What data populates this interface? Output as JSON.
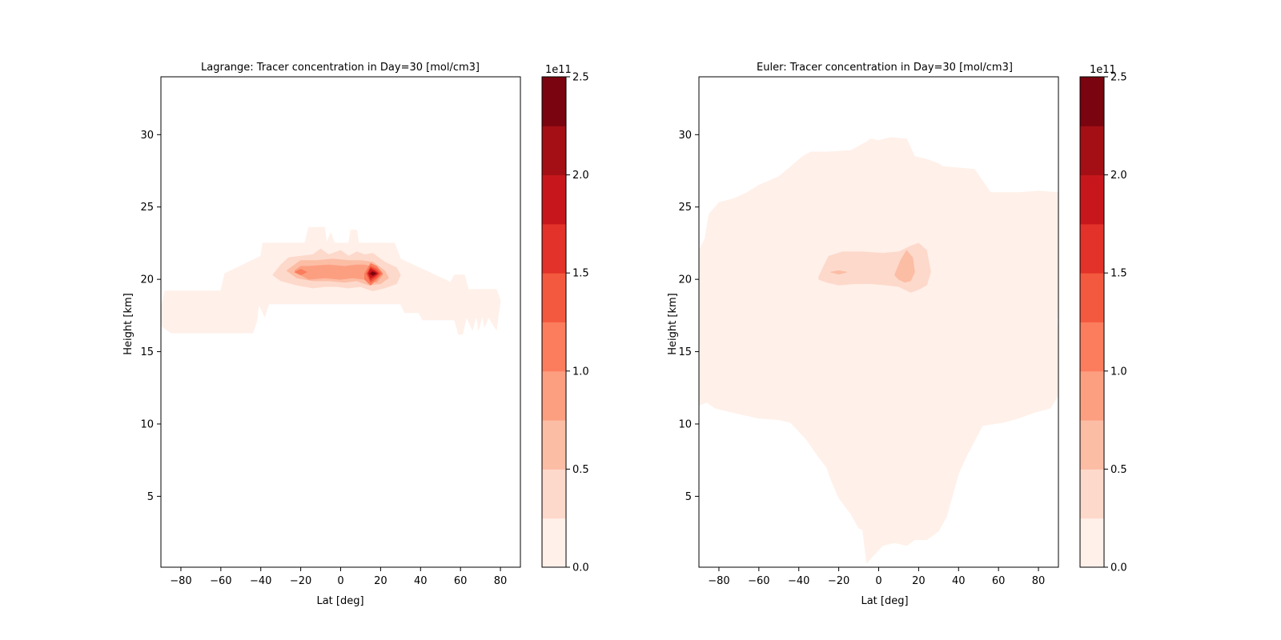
{
  "colors": {
    "levels": [
      "#fff0e9",
      "#fdd9cb",
      "#fcbda5",
      "#fc9f81",
      "#fb7d5d",
      "#f3593f",
      "#e33229",
      "#c8171c",
      "#a30f15",
      "#7a040f"
    ],
    "frame": "#000000",
    "background": "#ffffff"
  },
  "chart_data": [
    {
      "type": "contour",
      "title": "Lagrange: Tracer concentration in Day=30 [mol/cm3]",
      "xlabel": "Lat [deg]",
      "ylabel": "Height [km]",
      "xlim": [
        -90,
        90
      ],
      "ylim": [
        0.1,
        34
      ],
      "xticks": [
        -80,
        -60,
        -40,
        -20,
        0,
        20,
        40,
        60,
        80
      ],
      "yticks": [
        5,
        10,
        15,
        20,
        25,
        30
      ],
      "colorbar": {
        "label": "1e11",
        "min": 0.0,
        "max": 2.5,
        "levels": [
          0.0,
          0.25,
          0.5,
          0.75,
          1.0,
          1.25,
          1.5,
          1.75,
          2.0,
          2.25,
          2.5
        ],
        "ticks": [
          "0.0",
          "0.5",
          "1.0",
          "1.5",
          "2.0",
          "2.5"
        ]
      },
      "regions": [
        {
          "level": 0,
          "lat": [
            -90,
            -88,
            -60,
            -58,
            -40,
            -39,
            -18,
            -16,
            -8,
            -7,
            -5,
            -3,
            4,
            5,
            8,
            9,
            27,
            30,
            55,
            57,
            62,
            64,
            78,
            80,
            79,
            78,
            74,
            72,
            71,
            69,
            68,
            66,
            63,
            61,
            59,
            57,
            56,
            41,
            39,
            32,
            30,
            18,
            16,
            4,
            3,
            -36,
            -38,
            -41,
            -42,
            -44,
            -60,
            -62,
            -85,
            -90
          ],
          "h": [
            18,
            19.2,
            19.2,
            20.4,
            21.6,
            22.5,
            22.5,
            23.6,
            23.6,
            22.5,
            23.2,
            22.5,
            22.5,
            23.4,
            23.4,
            22.5,
            22.5,
            21.4,
            19.8,
            20.3,
            20.3,
            19.3,
            19.3,
            18.5,
            17.6,
            16.5,
            17.4,
            16.7,
            17.5,
            16.5,
            17.5,
            16.5,
            17.4,
            16.2,
            16.2,
            17.2,
            17.2,
            17.2,
            17.7,
            17.7,
            18.3,
            18.3,
            18.3,
            18.3,
            18.3,
            18.3,
            17.4,
            18.3,
            17.1,
            16.3,
            16.3,
            16.3,
            16.3,
            16.8
          ]
        },
        {
          "level": 1,
          "lat": [
            -34,
            -30,
            -26,
            -14,
            -10,
            -6,
            0,
            4,
            8,
            12,
            16,
            22,
            28,
            30,
            28,
            22,
            16,
            10,
            4,
            -2,
            -8,
            -14,
            -22,
            -30
          ],
          "h": [
            20.3,
            21.0,
            21.5,
            21.7,
            22.1,
            21.7,
            22.0,
            21.6,
            21.9,
            21.7,
            21.8,
            21.2,
            20.8,
            20.3,
            19.7,
            19.4,
            19.2,
            19.5,
            19.4,
            19.5,
            19.5,
            19.4,
            19.6,
            19.9
          ]
        },
        {
          "level": 2,
          "lat": [
            -27,
            -20,
            -12,
            -4,
            4,
            10,
            16,
            22,
            24,
            20,
            14,
            8,
            2,
            -6,
            -14,
            -22
          ],
          "h": [
            20.6,
            21.3,
            21.3,
            21.4,
            21.3,
            21.3,
            21.2,
            20.6,
            20.1,
            19.7,
            19.6,
            19.9,
            19.8,
            19.9,
            19.9,
            20.1
          ]
        },
        {
          "level": 3,
          "lat": [
            -23,
            -20,
            -16,
            -6,
            2,
            8,
            12,
            18,
            21,
            18,
            12,
            6,
            0,
            -8,
            -16,
            -20
          ],
          "h": [
            20.6,
            20.9,
            20.9,
            21.0,
            20.9,
            21.0,
            21.0,
            20.8,
            20.3,
            19.8,
            20.0,
            20.1,
            20.0,
            20.1,
            20.0,
            20.3
          ]
        },
        {
          "level": 4,
          "lat": [
            -23,
            -20,
            -17,
            -20
          ],
          "h": [
            20.5,
            20.7,
            20.5,
            20.3
          ]
        },
        {
          "level": 4,
          "lat": [
            12,
            15,
            18,
            21,
            18,
            15,
            12
          ],
          "h": [
            20.4,
            21.1,
            20.9,
            20.4,
            20.0,
            19.6,
            20.0
          ]
        },
        {
          "level": 5,
          "lat": [
            13,
            15,
            18,
            20,
            18,
            15
          ],
          "h": [
            20.4,
            20.9,
            20.7,
            20.4,
            20.1,
            19.8
          ]
        },
        {
          "level": 6,
          "lat": [
            13.5,
            15,
            17.5,
            19,
            17.5,
            15
          ],
          "h": [
            20.4,
            20.8,
            20.6,
            20.4,
            20.2,
            19.95
          ]
        },
        {
          "level": 7,
          "lat": [
            14,
            15,
            17,
            18.5,
            17,
            15
          ],
          "h": [
            20.4,
            20.7,
            20.55,
            20.4,
            20.25,
            20.1
          ]
        },
        {
          "level": 8,
          "lat": [
            14.5,
            16,
            18,
            16
          ],
          "h": [
            20.4,
            20.55,
            20.4,
            20.25
          ]
        },
        {
          "level": 9,
          "lat": [
            15,
            16,
            17.5,
            16
          ],
          "h": [
            20.4,
            20.5,
            20.4,
            20.3
          ]
        }
      ]
    },
    {
      "type": "contour",
      "title": "Euler: Tracer concentration in Day=30 [mol/cm3]",
      "xlabel": "Lat [deg]",
      "ylabel": "Height [km]",
      "xlim": [
        -90,
        90
      ],
      "ylim": [
        0.1,
        34
      ],
      "xticks": [
        -80,
        -60,
        -40,
        -20,
        0,
        20,
        40,
        60,
        80
      ],
      "yticks": [
        5,
        10,
        15,
        20,
        25,
        30
      ],
      "colorbar": {
        "label": "1e11",
        "min": 0.0,
        "max": 2.5,
        "levels": [
          0.0,
          0.25,
          0.5,
          0.75,
          1.0,
          1.25,
          1.5,
          1.75,
          2.0,
          2.25,
          2.5
        ],
        "ticks": [
          "0.0",
          "0.5",
          "1.0",
          "1.5",
          "2.0",
          "2.5"
        ]
      },
      "regions": [
        {
          "level": 0,
          "lat": [
            -90,
            -87,
            -85,
            -80,
            -72,
            -66,
            -60,
            -50,
            -38,
            -34,
            -26,
            -14,
            -6,
            -4,
            0,
            6,
            14,
            18,
            24,
            30,
            32,
            40,
            48,
            56,
            70,
            80,
            90,
            90,
            89,
            90,
            90,
            86,
            78,
            70,
            62,
            52,
            44,
            40,
            36,
            34,
            30,
            24,
            18,
            14,
            8,
            2,
            -2,
            -6,
            -8,
            -10,
            -14,
            -20,
            -24,
            -26,
            -30,
            -36,
            -44,
            -50,
            -60,
            -70,
            -82,
            -86,
            -90
          ],
          "h": [
            22,
            22.8,
            24.5,
            25.3,
            25.6,
            26.0,
            26.5,
            27.1,
            28.5,
            28.8,
            28.8,
            28.9,
            29.5,
            29.7,
            29.6,
            29.8,
            29.7,
            28.5,
            28.3,
            28.0,
            27.8,
            27.7,
            27.6,
            26.0,
            26.0,
            26.1,
            26.0,
            17.2,
            17.5,
            16.4,
            12.0,
            11.1,
            10.8,
            10.4,
            10.1,
            9.9,
            7.8,
            6.6,
            4.6,
            3.6,
            2.6,
            2.0,
            2.0,
            1.6,
            1.8,
            1.6,
            1.0,
            0.4,
            2.7,
            2.8,
            3.8,
            4.9,
            6.2,
            7.0,
            7.7,
            8.9,
            10.1,
            10.3,
            10.4,
            10.7,
            11.1,
            11.5,
            11.3
          ]
        },
        {
          "level": 1,
          "lat": [
            -30,
            -25,
            -18,
            -8,
            2,
            10,
            16,
            20,
            24,
            26,
            24,
            20,
            16,
            10,
            4,
            -4,
            -12,
            -20,
            -26,
            -30
          ],
          "h": [
            20.2,
            21.6,
            21.9,
            21.9,
            21.8,
            21.9,
            22.3,
            22.5,
            22.0,
            20.5,
            19.6,
            19.3,
            19.1,
            19.5,
            19.6,
            19.7,
            19.7,
            19.6,
            19.8,
            20.0
          ]
        },
        {
          "level": 2,
          "lat": [
            -24,
            -20,
            -16,
            -20
          ],
          "h": [
            20.5,
            20.6,
            20.5,
            20.35
          ]
        },
        {
          "level": 2,
          "lat": [
            8,
            11,
            14,
            17,
            18,
            16,
            13,
            10
          ],
          "h": [
            20.3,
            21.3,
            22.0,
            21.5,
            20.5,
            19.9,
            19.8,
            20.0
          ]
        }
      ]
    }
  ]
}
